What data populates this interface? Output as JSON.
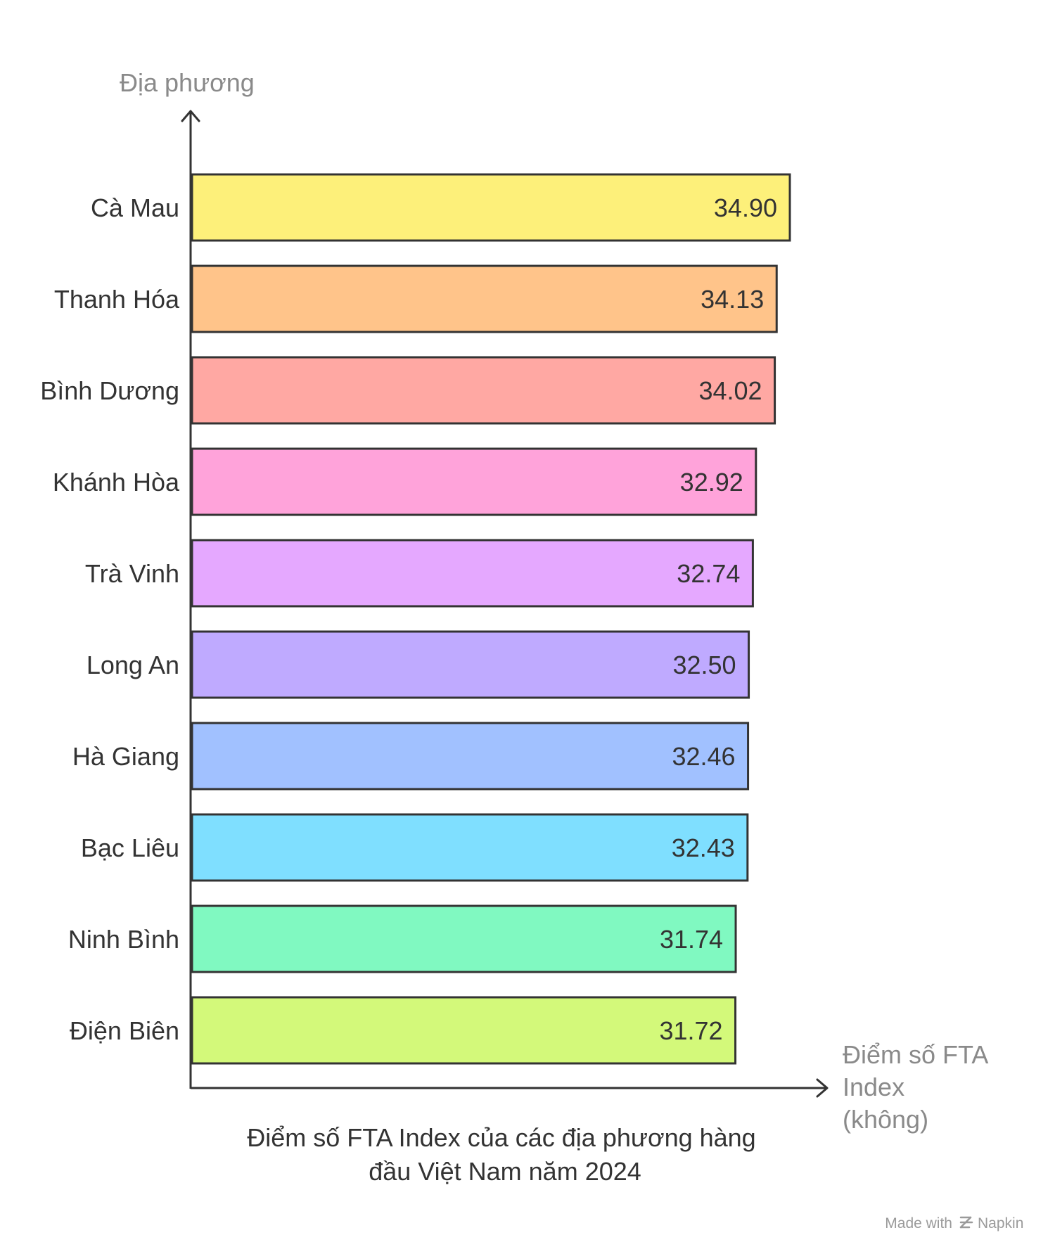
{
  "chart_data": {
    "type": "bar",
    "orientation": "horizontal",
    "title": [
      "Điểm số FTA Index của các địa phương hàng",
      "đầu Việt Nam năm 2024"
    ],
    "ylabel": "Địa phương",
    "xlabel": [
      "Điểm số FTA",
      "Index",
      "(không)"
    ],
    "categories": [
      "Cà Mau",
      "Thanh Hóa",
      "Bình Dương",
      "Khánh Hòa",
      "Trà Vinh",
      "Long An",
      "Hà Giang",
      "Bạc Liêu",
      "Ninh Bình",
      "Điện Biên"
    ],
    "values": [
      34.9,
      34.13,
      34.02,
      32.92,
      32.74,
      32.5,
      32.46,
      32.43,
      31.74,
      31.72
    ],
    "value_labels": [
      "34.90",
      "34.13",
      "34.02",
      "32.92",
      "32.74",
      "32.50",
      "32.46",
      "32.43",
      "31.74",
      "31.72"
    ],
    "colors": [
      "#fdf07a",
      "#ffc48a",
      "#ffa8a3",
      "#ffa3da",
      "#e5a8ff",
      "#bfaaff",
      "#a1c1ff",
      "#7fdfff",
      "#80f9c1",
      "#d3f97a"
    ],
    "grid": false,
    "legend": "none"
  },
  "footer": {
    "made_with": "Made with",
    "brand": "Napkin"
  }
}
